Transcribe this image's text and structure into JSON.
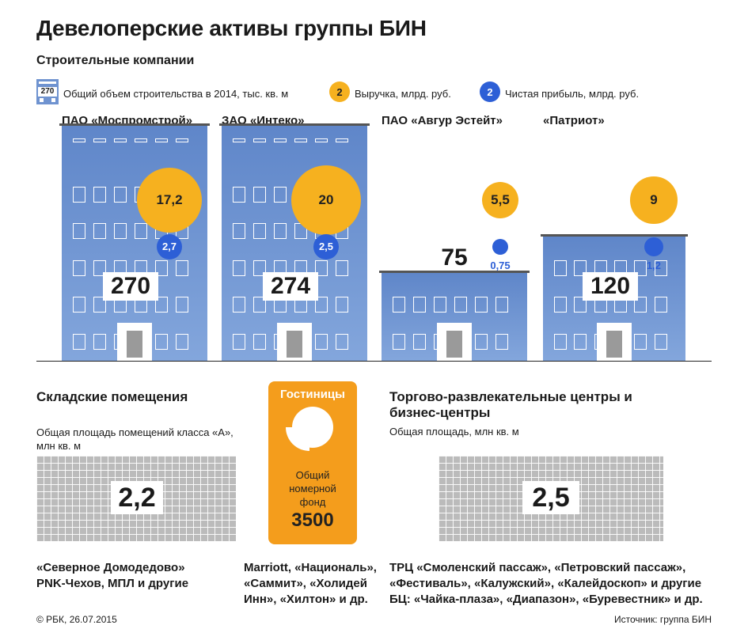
{
  "title": "Девелоперские активы группы БИН",
  "construction": {
    "heading": "Строительные компании",
    "legend": {
      "building_icon_value": "270",
      "volume_label": "Общий объем строительства в 2014, тыс. кв. м",
      "revenue_sample": "2",
      "revenue_label": "Выручка, млрд. руб.",
      "profit_sample": "2",
      "profit_label": "Чистая прибыль, млрд. руб."
    }
  },
  "chart_data": {
    "type": "bar",
    "categories": [
      "ПАО «Моспромстрой»",
      "ЗАО «Интеко»",
      "ПАО «Авгур Эстейт»",
      "«Патриот»"
    ],
    "series": [
      {
        "name": "Общий объем строительства в 2014, тыс. кв. м",
        "values": [
          270,
          274,
          75,
          120
        ],
        "labels": [
          "270",
          "274",
          "75",
          "120"
        ]
      },
      {
        "name": "Выручка, млрд. руб.",
        "values": [
          17.2,
          20,
          5.5,
          9
        ],
        "labels": [
          "17,2",
          "20",
          "5,5",
          "9"
        ]
      },
      {
        "name": "Чистая прибыль, млрд. руб.",
        "values": [
          2.7,
          2.5,
          0.75,
          1.2
        ],
        "labels": [
          "2,7",
          "2,5",
          "0,75",
          "1,2"
        ]
      }
    ],
    "colors": {
      "building": "#6f93d0",
      "revenue": "#f6b11f",
      "profit": "#2d5fd6",
      "hotel": "#f49d1c",
      "grid": "#bbbbbb"
    }
  },
  "warehouses": {
    "heading": "Складские помещения",
    "note": "Общая площадь помещений класса «А», млн кв. м",
    "value": "2,2",
    "names": "«Северное Домодедово» PNK-Чехов, МПЛ и другие"
  },
  "hotels": {
    "heading": "Гостиницы",
    "caption": "Общий номерной фонд",
    "value": "3500",
    "names": "Marriott, «Националь», «Саммит», «Холидей Инн», «Хилтон» и др."
  },
  "malls": {
    "heading": "Торгово-развлекательные центры и бизнес-центры",
    "note": "Общая площадь, млн кв. м",
    "value": "2,5",
    "names_line1": "ТРЦ «Смоленский пассаж», «Петровский пассаж»,",
    "names_line2": "«Фестиваль», «Калужский», «Калейдоскоп» и другие",
    "names_line3": "БЦ: «Чайка-плаза», «Диапазон», «Буревестник» и др."
  },
  "footer": {
    "copyright": "© РБК, 26.07.2015",
    "source": "Источник: группа БИН"
  }
}
